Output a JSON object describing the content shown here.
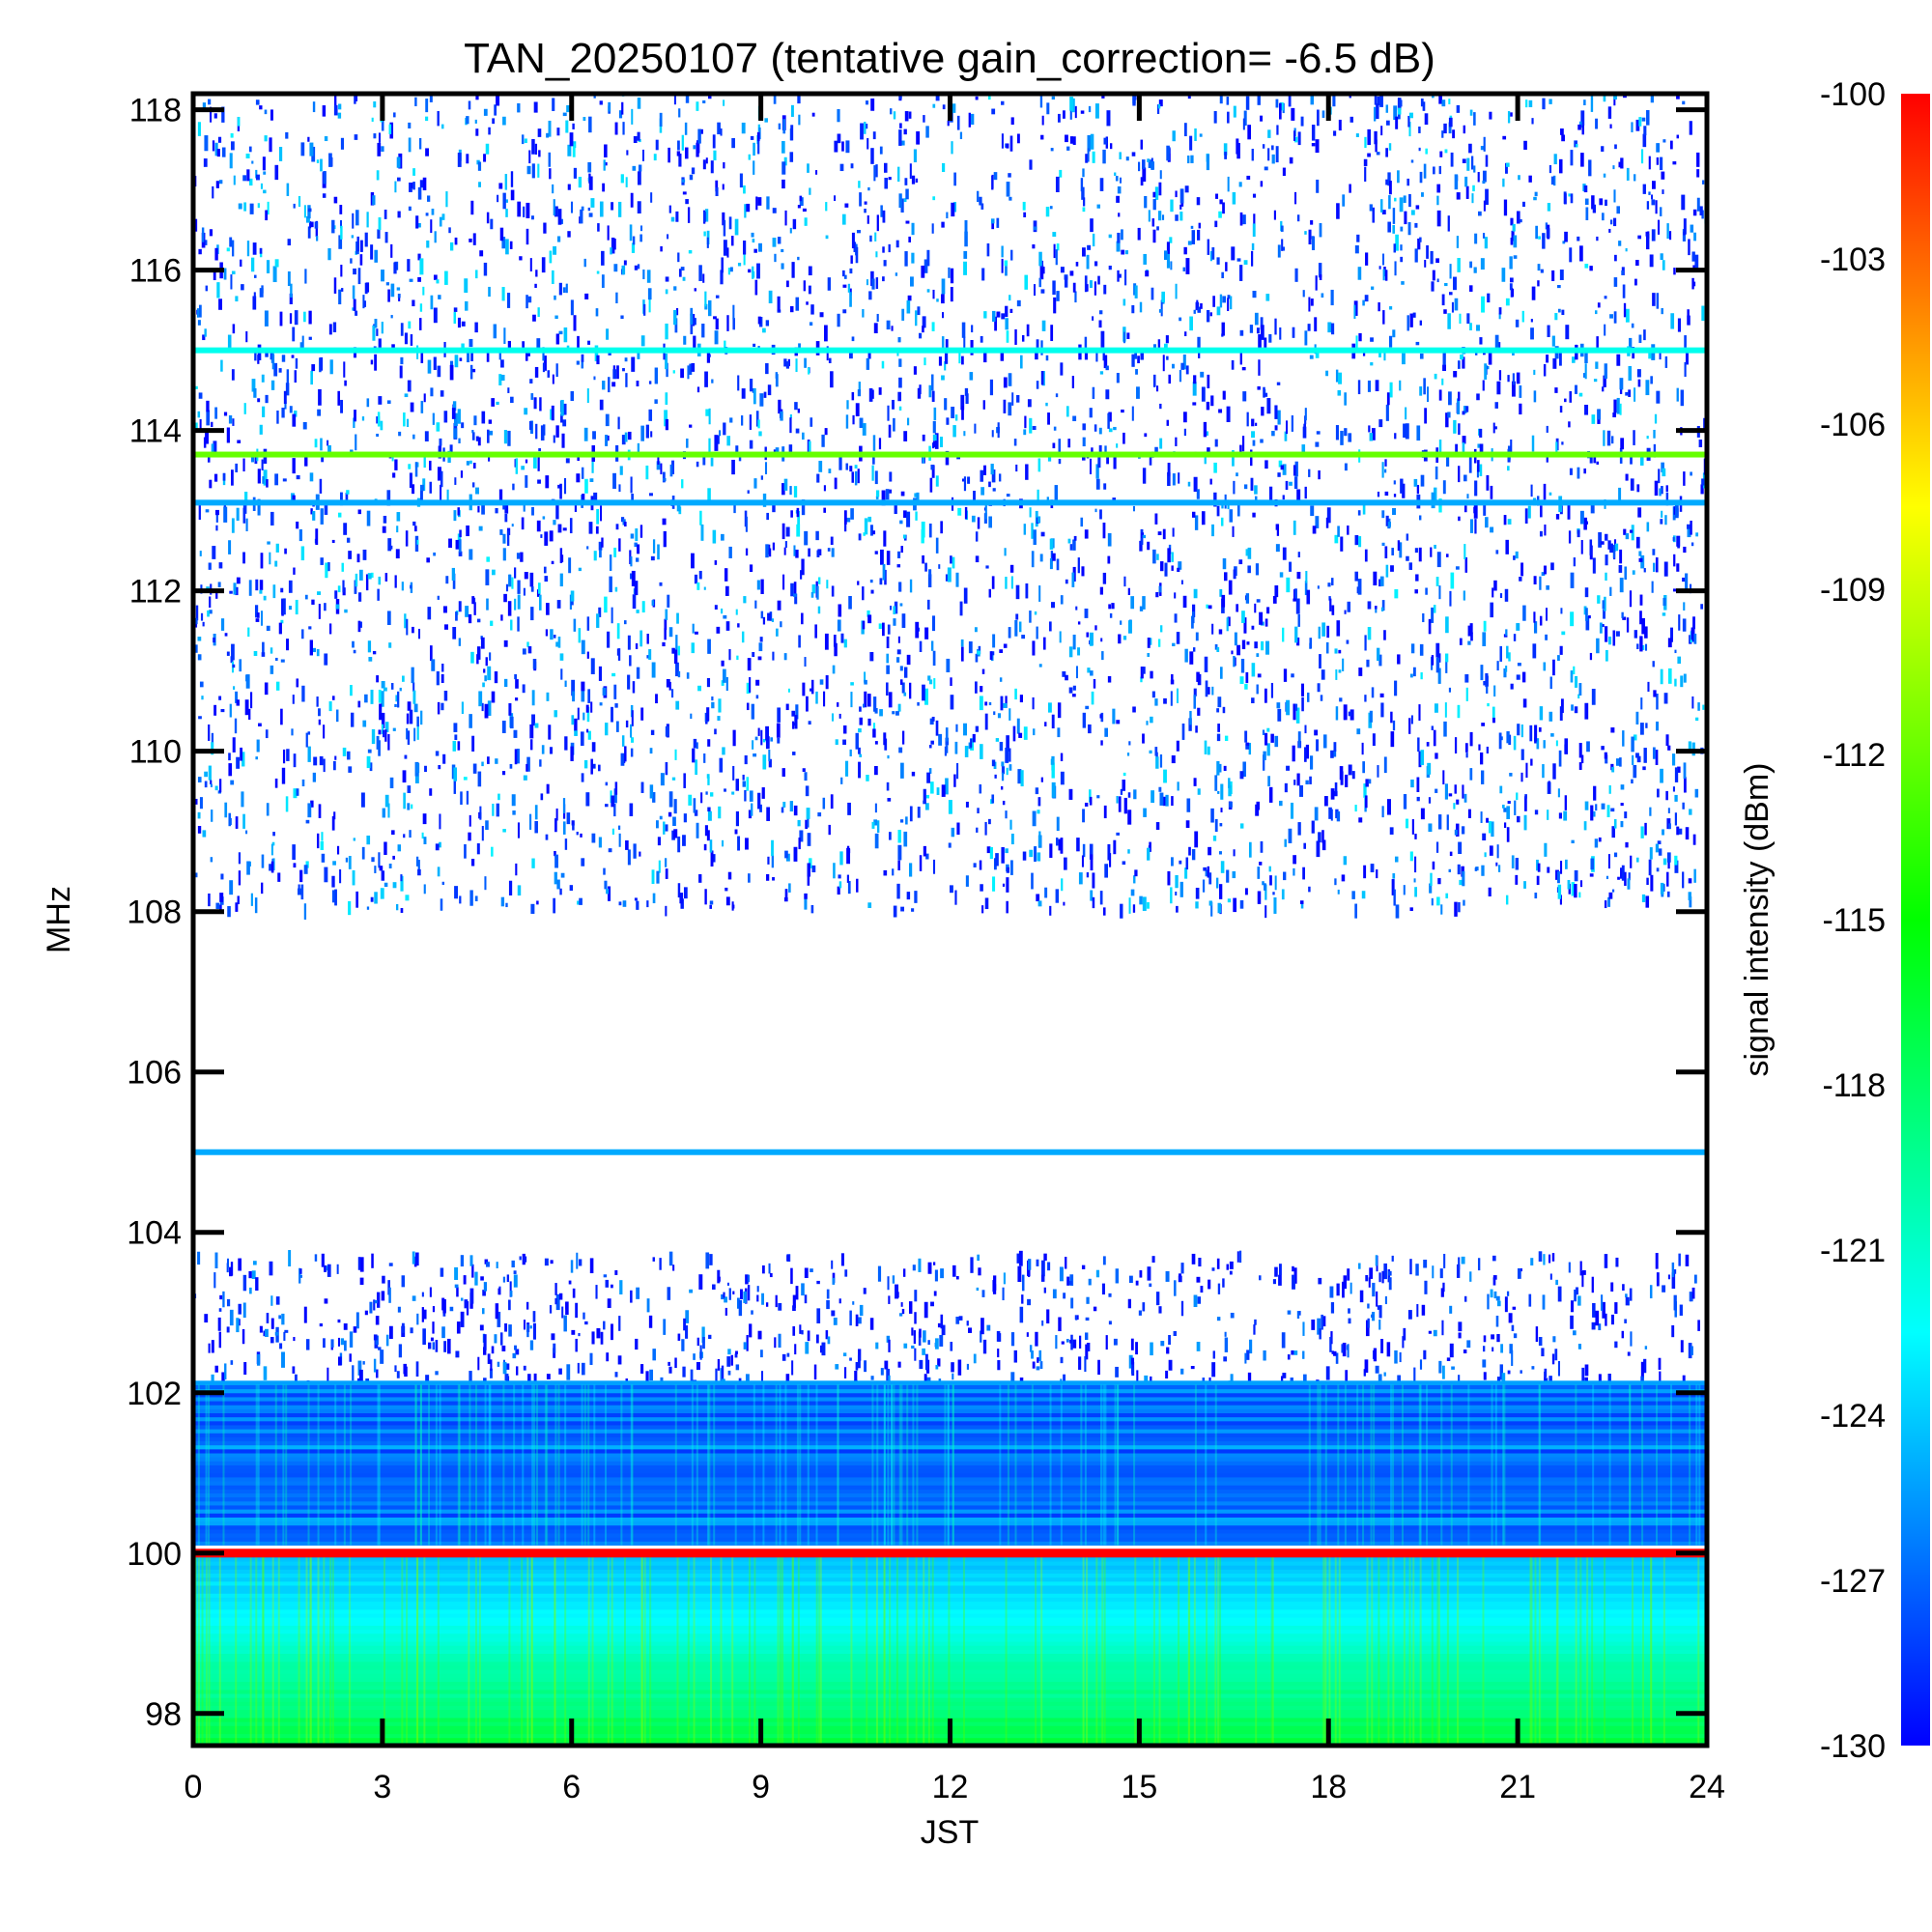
{
  "chart_data": {
    "type": "heatmap",
    "title": "TAN_20250107 (tentative gain_correction= -6.5 dB)",
    "xlabel": "JST",
    "ylabel": "MHz",
    "xlim": [
      0,
      24
    ],
    "ylim": [
      97.6,
      118.2
    ],
    "x_ticks": [
      0,
      3,
      6,
      9,
      12,
      15,
      18,
      21,
      24
    ],
    "y_ticks": [
      98,
      100,
      102,
      104,
      106,
      108,
      110,
      112,
      114,
      116,
      118
    ],
    "colorbar": {
      "label": "signal intensity (dBm)",
      "range": [
        -130,
        -100
      ],
      "ticks": [
        -100,
        -103,
        -106,
        -109,
        -112,
        -115,
        -118,
        -121,
        -124,
        -127,
        -130
      ],
      "colormap": [
        "#0000ff",
        "#00ffff",
        "#00ff00",
        "#ffff00",
        "#ff0000"
      ]
    },
    "features": [
      {
        "frequency_mhz": 115.0,
        "intensity_dbm": -122
      },
      {
        "frequency_mhz": 113.7,
        "intensity_dbm": -112
      },
      {
        "frequency_mhz": 113.1,
        "intensity_dbm": -125
      },
      {
        "frequency_mhz": 105.0,
        "intensity_dbm": -125
      },
      {
        "frequency_mhz": 100.0,
        "intensity_dbm": -100
      }
    ],
    "regions": [
      {
        "freq_range_mhz": [
          108.0,
          118.2
        ],
        "level": "noisy",
        "intensity_dbm": [
          -130,
          -124
        ]
      },
      {
        "freq_range_mhz": [
          102.1,
          103.7
        ],
        "level": "sparse",
        "intensity_dbm": [
          -130,
          -126
        ]
      },
      {
        "freq_range_mhz": [
          100.1,
          102.1
        ],
        "level": "dense",
        "intensity_dbm": [
          -130,
          -125
        ]
      },
      {
        "freq_range_mhz": [
          97.6,
          100.0
        ],
        "level": "dense",
        "intensity_dbm": [
          -125,
          -117
        ]
      }
    ]
  }
}
